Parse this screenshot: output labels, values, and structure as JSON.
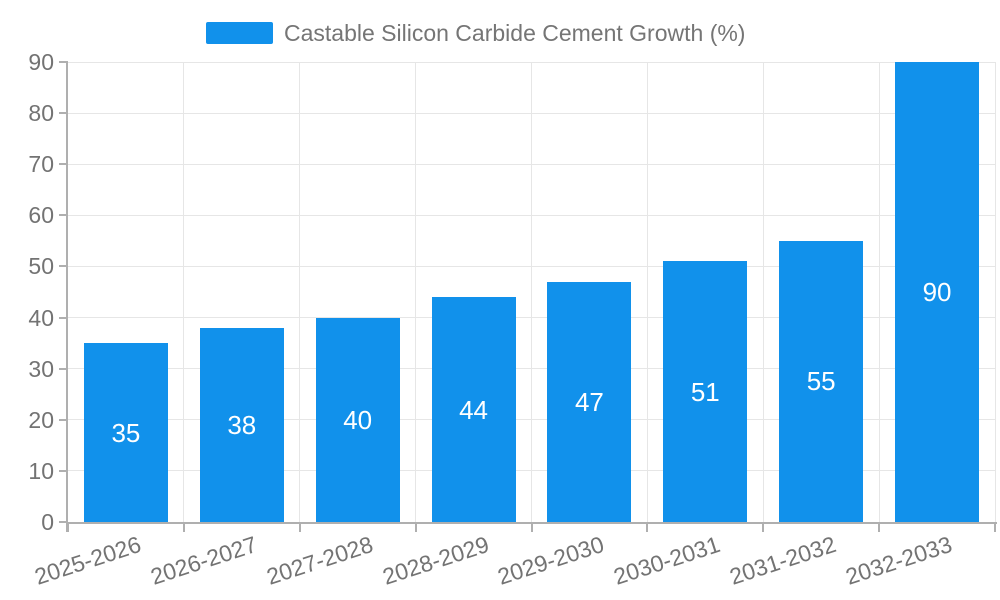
{
  "legend": {
    "label": "Castable Silicon Carbide Cement Growth (%)"
  },
  "chart_data": {
    "type": "bar",
    "title": "Castable Silicon Carbide Cement Growth (%)",
    "categories": [
      "2025-2026",
      "2026-2027",
      "2027-2028",
      "2028-2029",
      "2029-2030",
      "2030-2031",
      "2031-2032",
      "2032-2033"
    ],
    "values": [
      35,
      38,
      40,
      44,
      47,
      51,
      55,
      90
    ],
    "xlabel": "",
    "ylabel": "",
    "ylim": [
      0,
      90
    ],
    "ytick_step": 10,
    "ytick_labels": [
      "0",
      "10",
      "20",
      "30",
      "40",
      "50",
      "60",
      "70",
      "80",
      "90"
    ],
    "grid": true,
    "legend_position": "top",
    "bar_labels_inside": true,
    "colors": {
      "bar": "#1191EB",
      "bar_label": "#FFFFFF",
      "axis_text": "#737373",
      "legend_text": "#757575",
      "gridline": "#E6E6E6",
      "axis_line": "#AFAFAF"
    }
  }
}
